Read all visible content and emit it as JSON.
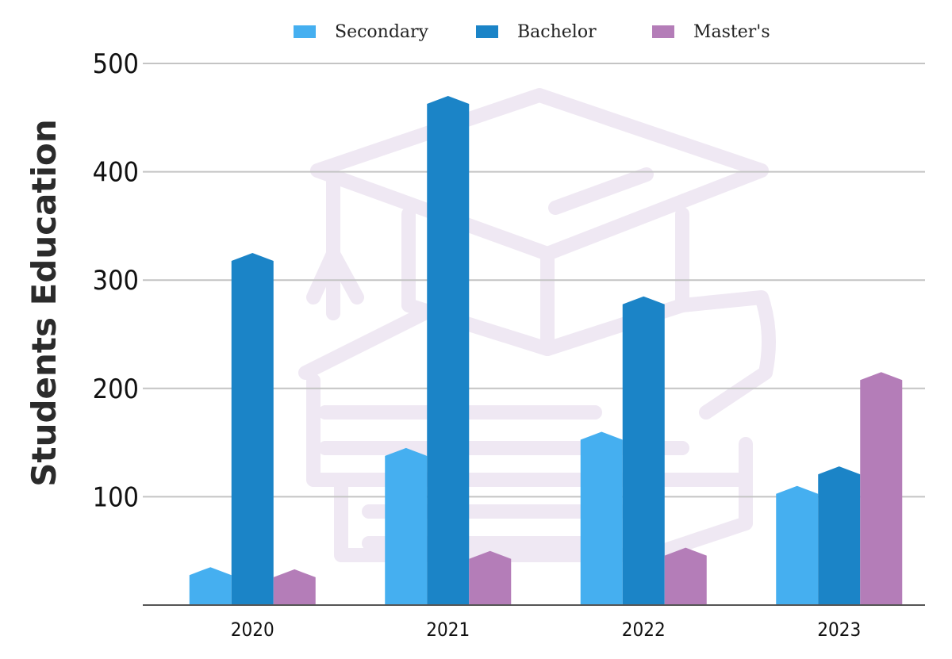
{
  "chart_data": {
    "type": "bar",
    "title": "",
    "xlabel": "",
    "ylabel": "Students Education",
    "categories": [
      "2020",
      "2021",
      "2022",
      "2023"
    ],
    "series": [
      {
        "name": "Secondary",
        "color": "#45AFF0",
        "values": [
          35,
          145,
          160,
          110
        ]
      },
      {
        "name": "Bachelor",
        "color": "#1B84C7",
        "values": [
          325,
          470,
          285,
          128
        ]
      },
      {
        "name": "Master's",
        "color": "#B47DB8",
        "values": [
          33,
          50,
          53,
          215
        ]
      }
    ],
    "ylim": [
      0,
      500
    ],
    "yticks": [
      "100",
      "200",
      "300",
      "400",
      "500"
    ],
    "grid": true,
    "legend_position": "top",
    "background_icon": "graduation-cap-and-books-icon"
  }
}
